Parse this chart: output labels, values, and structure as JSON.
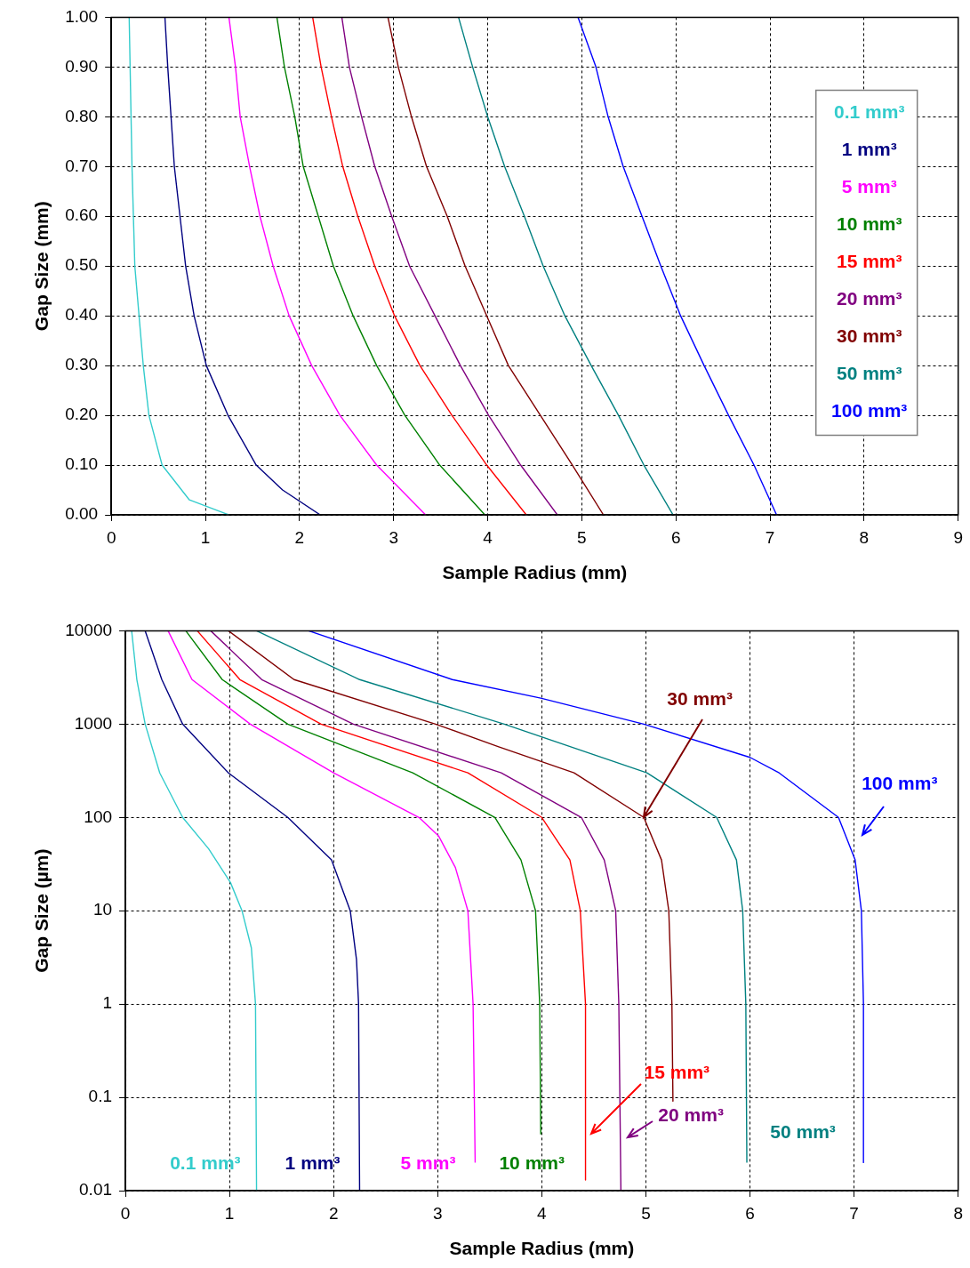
{
  "chart_data": [
    {
      "type": "line",
      "xlabel": "Sample Radius (mm)",
      "ylabel": "Gap Size (mm)",
      "xlim": [
        0,
        9
      ],
      "xticks": [
        0,
        1,
        2,
        3,
        4,
        5,
        6,
        7,
        8,
        9
      ],
      "ylim": [
        0,
        1
      ],
      "yticks": [
        {
          "value": 0,
          "label": "0.00"
        },
        {
          "value": 0.1,
          "label": "0.10"
        },
        {
          "value": 0.2,
          "label": "0.20"
        },
        {
          "value": 0.3,
          "label": "0.30"
        },
        {
          "value": 0.4,
          "label": "0.40"
        },
        {
          "value": 0.5,
          "label": "0.50"
        },
        {
          "value": 0.6,
          "label": "0.60"
        },
        {
          "value": 0.7,
          "label": "0.70"
        },
        {
          "value": 0.8,
          "label": "0.80"
        },
        {
          "value": 0.9,
          "label": "0.90"
        },
        {
          "value": 1,
          "label": "1.00"
        }
      ],
      "grid": true,
      "legend": "right",
      "line_style": "solid",
      "series": [
        {
          "name": "0.1 mm³",
          "color": "#33cccc",
          "x": [
            0.19,
            0.22,
            0.25,
            0.34,
            0.4,
            0.54,
            0.83,
            1.25
          ],
          "values": [
            1,
            0.7,
            0.5,
            0.3,
            0.2,
            0.1,
            0.03,
            0
          ]
        },
        {
          "name": "1 mm³",
          "color": "#000080",
          "x": [
            0.57,
            0.6,
            0.67,
            0.79,
            0.88,
            1.01,
            1.24,
            1.54,
            1.82,
            2.22
          ],
          "values": [
            1,
            0.9,
            0.7,
            0.5,
            0.4,
            0.3,
            0.2,
            0.1,
            0.05,
            0
          ]
        },
        {
          "name": "5 mm³",
          "color": "#ff00ff",
          "x": [
            1.25,
            1.32,
            1.37,
            1.47,
            1.58,
            1.72,
            1.89,
            2.13,
            2.43,
            2.82,
            3.34
          ],
          "values": [
            1,
            0.9,
            0.8,
            0.7,
            0.6,
            0.5,
            0.4,
            0.3,
            0.2,
            0.1,
            0
          ]
        },
        {
          "name": "10 mm³",
          "color": "#008000",
          "x": [
            1.76,
            1.84,
            1.95,
            2.04,
            2.2,
            2.36,
            2.57,
            2.82,
            3.12,
            3.49,
            3.97
          ],
          "values": [
            1,
            0.9,
            0.8,
            0.7,
            0.6,
            0.5,
            0.4,
            0.3,
            0.2,
            0.1,
            0
          ]
        },
        {
          "name": "15 mm³",
          "color": "#ff0000",
          "x": [
            2.14,
            2.23,
            2.34,
            2.46,
            2.62,
            2.8,
            3.01,
            3.28,
            3.62,
            3.99,
            4.41
          ],
          "values": [
            1,
            0.9,
            0.8,
            0.7,
            0.6,
            0.5,
            0.4,
            0.3,
            0.2,
            0.1,
            0
          ]
        },
        {
          "name": "20 mm³",
          "color": "#800080",
          "x": [
            2.45,
            2.53,
            2.66,
            2.8,
            2.98,
            3.17,
            3.44,
            3.71,
            4.01,
            4.35,
            4.74
          ],
          "values": [
            1,
            0.9,
            0.8,
            0.7,
            0.6,
            0.5,
            0.4,
            0.3,
            0.2,
            0.1,
            0
          ]
        },
        {
          "name": "30 mm³",
          "color": "#800000",
          "x": [
            2.94,
            3.05,
            3.19,
            3.35,
            3.57,
            3.76,
            3.99,
            4.22,
            4.56,
            4.9,
            5.23
          ],
          "values": [
            1,
            0.9,
            0.8,
            0.7,
            0.6,
            0.5,
            0.4,
            0.3,
            0.2,
            0.1,
            0
          ]
        },
        {
          "name": "50 mm³",
          "color": "#008080",
          "x": [
            3.69,
            3.84,
            4.0,
            4.18,
            4.39,
            4.59,
            4.82,
            5.1,
            5.39,
            5.66,
            5.97
          ],
          "values": [
            1,
            0.9,
            0.8,
            0.7,
            0.6,
            0.5,
            0.4,
            0.3,
            0.2,
            0.1,
            0
          ]
        },
        {
          "name": "100 mm³",
          "color": "#0000ff",
          "x": [
            4.96,
            5.15,
            5.28,
            5.44,
            5.64,
            5.84,
            6.05,
            6.3,
            6.56,
            6.83,
            7.07
          ],
          "values": [
            1,
            0.9,
            0.8,
            0.7,
            0.6,
            0.5,
            0.4,
            0.3,
            0.2,
            0.1,
            0
          ]
        }
      ]
    },
    {
      "type": "line",
      "xlabel": "Sample Radius (mm)",
      "ylabel": "Gap Size (µm)",
      "log": "y",
      "xlim": [
        0,
        8
      ],
      "xticks": [
        0,
        1,
        2,
        3,
        4,
        5,
        6,
        7,
        8
      ],
      "ylim": [
        0.01,
        10000
      ],
      "yticks": [
        0.01,
        0.1,
        1,
        10,
        100,
        1000,
        10000
      ],
      "grid": true,
      "legend": false,
      "line_style": "solid",
      "series": [
        {
          "name": "0.1 mm³",
          "color": "#33cccc",
          "x": [
            0.06,
            0.11,
            0.19,
            0.33,
            0.55,
            0.8,
            1.01,
            1.12,
            1.21,
            1.25,
            1.26
          ],
          "values": [
            10000,
            3000,
            1000,
            300,
            100,
            46,
            20,
            10,
            4,
            1,
            0.01
          ]
        },
        {
          "name": "1 mm³",
          "color": "#000080",
          "x": [
            0.19,
            0.35,
            0.55,
            0.99,
            1.56,
            1.98,
            2.16,
            2.22,
            2.24,
            2.25
          ],
          "values": [
            10000,
            3000,
            1000,
            300,
            100,
            35,
            10,
            3,
            1,
            0.01
          ]
        },
        {
          "name": "5 mm³",
          "color": "#ff00ff",
          "x": [
            0.41,
            0.64,
            1.2,
            2.0,
            2.82,
            3.01,
            3.17,
            3.29,
            3.34,
            3.36
          ],
          "values": [
            10000,
            3000,
            1000,
            300,
            100,
            63,
            29,
            10,
            1,
            0.02
          ]
        },
        {
          "name": "10 mm³",
          "color": "#008000",
          "x": [
            0.58,
            0.93,
            1.56,
            2.76,
            3.55,
            3.8,
            3.94,
            3.98,
            3.99
          ],
          "values": [
            10000,
            3000,
            1000,
            300,
            100,
            35,
            10,
            1,
            0.04
          ]
        },
        {
          "name": "15 mm³",
          "color": "#ff0000",
          "x": [
            0.69,
            1.1,
            1.88,
            3.29,
            4.0,
            4.27,
            4.37,
            4.42,
            4.42
          ],
          "values": [
            10000,
            3000,
            1000,
            300,
            100,
            35,
            10,
            1,
            0.013
          ]
        },
        {
          "name": "20 mm³",
          "color": "#800080",
          "x": [
            0.82,
            1.31,
            2.19,
            3.61,
            4.38,
            4.6,
            4.71,
            4.74,
            4.76
          ],
          "values": [
            10000,
            3000,
            1000,
            300,
            100,
            35,
            10,
            1,
            0.01
          ]
        },
        {
          "name": "30 mm³",
          "color": "#800000",
          "x": [
            0.99,
            1.62,
            2.98,
            3.58,
            4.31,
            4.98,
            5.15,
            5.22,
            5.25,
            5.26
          ],
          "values": [
            10000,
            3000,
            1000,
            575,
            300,
            100,
            35,
            10,
            1,
            0.09
          ]
        },
        {
          "name": "50 mm³",
          "color": "#008080",
          "x": [
            1.26,
            2.25,
            3.64,
            5.01,
            5.68,
            5.87,
            5.93,
            5.96,
            5.97
          ],
          "values": [
            10000,
            3000,
            1000,
            300,
            100,
            35,
            10,
            1,
            0.02
          ]
        },
        {
          "name": "100 mm³",
          "color": "#0000ff",
          "x": [
            1.76,
            3.14,
            3.99,
            4.98,
            6.0,
            6.28,
            6.85,
            7.01,
            7.07,
            7.09,
            7.09
          ],
          "values": [
            10000,
            3000,
            1900,
            1000,
            440,
            300,
            100,
            35,
            10,
            1,
            0.02
          ]
        }
      ]
    }
  ]
}
